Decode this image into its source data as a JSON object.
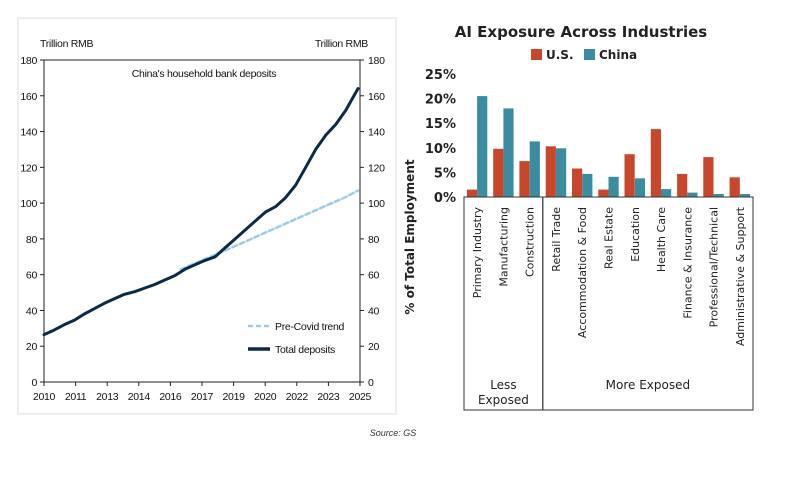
{
  "source_note": "Source: GS",
  "chart_data": [
    {
      "type": "line",
      "title": "China's household bank deposits",
      "left_unit": "Trillion RMB",
      "right_unit": "Trillion RMB",
      "ylim": [
        0,
        180
      ],
      "yticks": [
        "0",
        "20",
        "40",
        "60",
        "80",
        "100",
        "120",
        "140",
        "160",
        "180"
      ],
      "xticks": [
        "2010",
        "2011",
        "2013",
        "2014",
        "2016",
        "2017",
        "2019",
        "2020",
        "2022",
        "2023",
        "2025"
      ],
      "xlim": [
        2010.0,
        2025.7
      ],
      "series": [
        {
          "name": "Total deposits",
          "color": "#0b2a4a",
          "style": "solid",
          "x": [
            2010.0,
            2010.5,
            2011.0,
            2011.5,
            2012.0,
            2012.5,
            2013.0,
            2013.5,
            2014.0,
            2014.5,
            2015.0,
            2015.5,
            2016.0,
            2016.5,
            2017.0,
            2017.5,
            2018.0,
            2018.5,
            2019.0,
            2019.5,
            2020.0,
            2020.5,
            2021.0,
            2021.5,
            2022.0,
            2022.5,
            2023.0,
            2023.5,
            2024.0,
            2024.5,
            2025.0,
            2025.3,
            2025.6
          ],
          "y": [
            26.5,
            29.0,
            32.0,
            34.5,
            38.0,
            41.0,
            44.0,
            46.5,
            49.0,
            50.5,
            52.5,
            54.5,
            57.0,
            59.5,
            63.0,
            65.5,
            68.0,
            70.0,
            75.0,
            80.0,
            85.0,
            90.0,
            95.0,
            98.0,
            103.0,
            110.0,
            120.0,
            130.0,
            138.0,
            144.0,
            152.0,
            158.0,
            164.0
          ]
        },
        {
          "name": "Pre-Covid trend",
          "color": "#9fcbea",
          "style": "dashed",
          "x": [
            2016.8,
            2019.0,
            2020.0,
            2021.0,
            2022.0,
            2023.0,
            2024.0,
            2025.0,
            2025.6
          ],
          "y": [
            63.0,
            73.5,
            78.5,
            83.5,
            88.5,
            93.5,
            98.5,
            103.5,
            107.0
          ]
        }
      ],
      "legend": "bottom-right"
    },
    {
      "type": "bar",
      "title": "AI Exposure Across Industries",
      "ylabel": "% of Total Employment",
      "ylim": [
        0,
        25
      ],
      "yticks": [
        "0%",
        "5%",
        "10%",
        "15%",
        "20%",
        "25%"
      ],
      "categories": [
        "Primary Industry",
        "Manufacturing",
        "Construction",
        "Retail Trade",
        "Accommodation & Food",
        "Real Estate",
        "Education",
        "Health Care",
        "Finance & Insurance",
        "Professional/Technical",
        "Administrative & Support"
      ],
      "series": [
        {
          "name": "U.S.",
          "color": "#c8472a",
          "values": [
            1.5,
            9.8,
            7.3,
            10.3,
            5.8,
            1.5,
            8.7,
            13.8,
            4.7,
            8.1,
            4.0
          ]
        },
        {
          "name": "China",
          "color": "#3b8ca0",
          "values": [
            20.5,
            18.0,
            11.3,
            9.9,
            4.7,
            4.1,
            3.8,
            1.6,
            0.9,
            0.6,
            0.6
          ]
        }
      ],
      "groups": [
        {
          "label_line1": "Less",
          "label_line2": "Exposed",
          "count": 3
        },
        {
          "label_line1": "More Exposed",
          "label_line2": "",
          "count": 8
        }
      ],
      "legend": "top-center"
    }
  ]
}
